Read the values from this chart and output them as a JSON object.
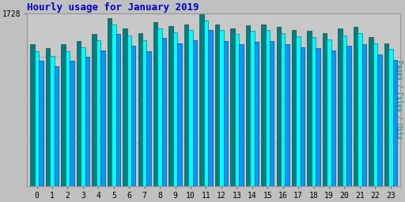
{
  "title": "Hourly usage for January 2019",
  "ylabel_right": "Pages / Files / Hits",
  "hours": [
    0,
    1,
    2,
    3,
    4,
    5,
    6,
    7,
    8,
    9,
    10,
    11,
    12,
    13,
    14,
    15,
    16,
    17,
    18,
    19,
    20,
    21,
    22,
    23
  ],
  "ytick_label": "1728",
  "ymax": 1728,
  "hits": [
    1420,
    1380,
    1420,
    1450,
    1520,
    1680,
    1580,
    1530,
    1640,
    1600,
    1620,
    1720,
    1620,
    1580,
    1610,
    1620,
    1590,
    1560,
    1550,
    1530,
    1580,
    1590,
    1490,
    1430
  ],
  "pages": [
    1350,
    1300,
    1350,
    1390,
    1460,
    1620,
    1510,
    1460,
    1580,
    1540,
    1560,
    1660,
    1560,
    1520,
    1550,
    1560,
    1530,
    1500,
    1490,
    1470,
    1510,
    1530,
    1430,
    1370
  ],
  "files": [
    1250,
    1200,
    1250,
    1290,
    1360,
    1520,
    1400,
    1350,
    1480,
    1430,
    1460,
    1560,
    1450,
    1420,
    1445,
    1450,
    1420,
    1390,
    1380,
    1360,
    1400,
    1420,
    1320,
    1260
  ],
  "color_hits": "#008080",
  "color_pages": "#00ffff",
  "color_files": "#0099ff",
  "bg_color": "#c0c0c0",
  "plot_bg": "#c8c8c8",
  "title_color": "#0000cc",
  "ylabel_color": "#008080",
  "bar_width": 0.28,
  "figsize": [
    5.12,
    2.56
  ],
  "dpi": 100
}
